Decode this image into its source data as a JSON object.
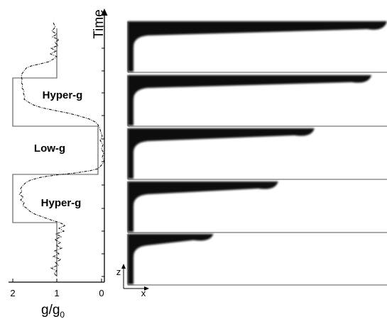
{
  "axis": {
    "time_label": "Time",
    "g_label_main": "g/g",
    "g_label_sub": "0",
    "g_ticks": [
      "2",
      "1",
      "0"
    ]
  },
  "phases": [
    "Hyper-g",
    "Low-g",
    "Hyper-g"
  ],
  "panel_axes": {
    "z_label": "z",
    "x_label": "x"
  },
  "snapshots": [
    {
      "panel": 1,
      "front_fraction": 1.0
    },
    {
      "panel": 2,
      "front_fraction": 0.94
    },
    {
      "panel": 3,
      "front_fraction": 0.72
    },
    {
      "panel": 4,
      "front_fraction": 0.58
    },
    {
      "panel": 5,
      "front_fraction": 0.33
    }
  ],
  "colors": {
    "fluid": "#0a0a0a",
    "background": "#ffffff",
    "line": "#555555"
  }
}
